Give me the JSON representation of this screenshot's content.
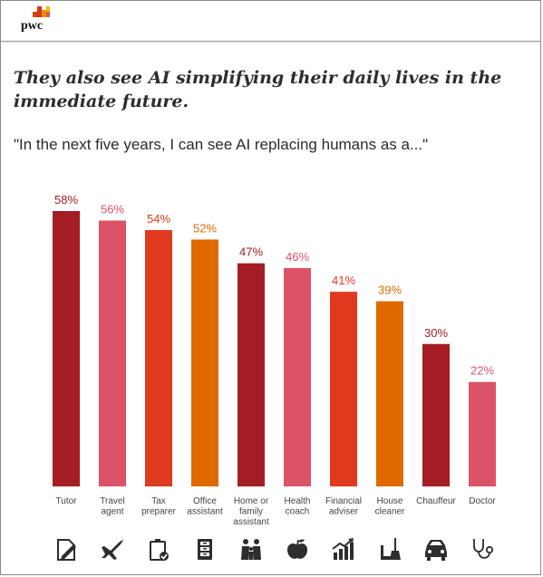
{
  "logo": {
    "text": "pwc"
  },
  "title": "They also see AI simplifying their daily lives in the immediate future.",
  "subtitle": "\"In the next five years, I can see AI replacing humans as a...\"",
  "chart_data": {
    "type": "bar",
    "categories": [
      [
        "Tutor"
      ],
      [
        "Travel",
        "agent"
      ],
      [
        "Tax",
        "preparer"
      ],
      [
        "Office",
        "assistant"
      ],
      [
        "Home or",
        "family",
        "assistant"
      ],
      [
        "Health",
        "coach"
      ],
      [
        "Financial",
        "adviser"
      ],
      [
        "House",
        "cleaner"
      ],
      [
        "Chauffeur"
      ],
      [
        "Doctor"
      ]
    ],
    "values": [
      58,
      56,
      54,
      52,
      47,
      46,
      41,
      39,
      30,
      22
    ],
    "value_labels": [
      "58%",
      "56%",
      "54%",
      "52%",
      "47%",
      "46%",
      "41%",
      "39%",
      "30%",
      "22%"
    ],
    "bar_colors": [
      "#a41d24",
      "#dc5368",
      "#e03a1e",
      "#e06a00",
      "#a41d24",
      "#dc5368",
      "#e03a1e",
      "#e06a00",
      "#a41d24",
      "#dc5368"
    ],
    "ylim": [
      0,
      65
    ],
    "grid": false,
    "icons": [
      "tutor-pencil-icon",
      "airplane-icon",
      "clipboard-check-icon",
      "filing-cabinet-icon",
      "family-icon",
      "apple-icon",
      "growth-chart-icon",
      "broom-dustpan-icon",
      "car-icon",
      "stethoscope-icon"
    ]
  }
}
